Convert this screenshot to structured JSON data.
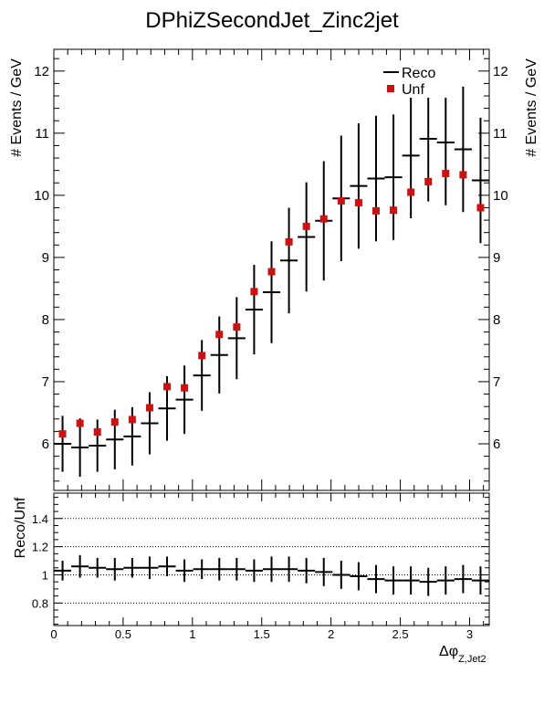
{
  "chart_data": [
    {
      "type": "scatter",
      "title": "DPhiZSecondJet_Zinc2jet",
      "ylabel": "# Events / GeV",
      "xlim": [
        0,
        3.14159
      ],
      "ylim": [
        5.25,
        12.35
      ],
      "y_ticks": [
        "6",
        "7",
        "8",
        "9",
        "10",
        "11",
        "12"
      ],
      "legend": {
        "placement": "top-right",
        "entries": [
          "Reco",
          "Unf"
        ]
      },
      "series": [
        {
          "name": "Reco",
          "style": "crosses with error bars",
          "color": "#000000",
          "bin_edges": [
            0,
            0.1257,
            0.2513,
            0.377,
            0.5027,
            0.6283,
            0.754,
            0.8796,
            1.0053,
            1.131,
            1.2566,
            1.3823,
            1.508,
            1.6336,
            1.7593,
            1.885,
            2.0106,
            2.1363,
            2.2619,
            2.3876,
            2.5133,
            2.6389,
            2.7646,
            2.8903,
            3.0159,
            3.1416
          ],
          "values": [
            6.0,
            5.94,
            5.97,
            6.07,
            6.12,
            6.33,
            6.57,
            6.71,
            7.1,
            7.43,
            7.7,
            8.16,
            8.44,
            8.95,
            9.33,
            9.59,
            9.95,
            10.15,
            10.27,
            10.29,
            10.64,
            10.91,
            10.85,
            10.74,
            10.24
          ],
          "errors": [
            0.45,
            0.47,
            0.42,
            0.48,
            0.47,
            0.5,
            0.52,
            0.55,
            0.57,
            0.62,
            0.66,
            0.72,
            0.82,
            0.85,
            0.88,
            0.96,
            1.01,
            1.01,
            1.01,
            1.01,
            1.01,
            1.01,
            1.01,
            1.01,
            1.01
          ]
        },
        {
          "name": "Unf",
          "style": "filled squares",
          "color": "#cc1111",
          "x": [
            0.0628,
            0.1885,
            0.3142,
            0.4398,
            0.5655,
            0.6912,
            0.8168,
            0.9425,
            1.0681,
            1.1938,
            1.3195,
            1.4451,
            1.5708,
            1.6965,
            1.8221,
            1.9478,
            2.0735,
            2.1991,
            2.3248,
            2.4504,
            2.5761,
            2.7018,
            2.8274,
            2.9531,
            3.0788
          ],
          "values": [
            6.16,
            6.33,
            6.19,
            6.35,
            6.39,
            6.58,
            6.92,
            6.9,
            7.42,
            7.76,
            7.88,
            8.45,
            8.77,
            9.25,
            9.5,
            9.62,
            9.91,
            9.88,
            9.75,
            9.76,
            10.05,
            10.22,
            10.35,
            10.33,
            9.8
          ]
        }
      ]
    },
    {
      "type": "scatter",
      "ylabel": "Reco/Unf",
      "xlabel": "Δφ",
      "xlabel_sub": "Z,Jet2",
      "xlim": [
        0,
        3.14159
      ],
      "ylim": [
        0.64,
        1.58
      ],
      "x_ticks": [
        "0",
        "0.5",
        "1",
        "1.5",
        "2",
        "2.5",
        "3"
      ],
      "y_ticks": [
        "0.8",
        "1",
        "1.2",
        "1.4"
      ],
      "gridlines_y": [
        0.8,
        1.0,
        1.2,
        1.4
      ],
      "series": [
        {
          "style": "crosses with error bars",
          "color": "#000000",
          "values": [
            1.03,
            1.06,
            1.05,
            1.04,
            1.05,
            1.05,
            1.06,
            1.03,
            1.04,
            1.04,
            1.04,
            1.03,
            1.04,
            1.04,
            1.03,
            1.02,
            1.0,
            0.99,
            0.97,
            0.96,
            0.96,
            0.95,
            0.96,
            0.97,
            0.96
          ],
          "errors": [
            0.07,
            0.08,
            0.07,
            0.08,
            0.07,
            0.08,
            0.07,
            0.08,
            0.07,
            0.08,
            0.08,
            0.08,
            0.09,
            0.09,
            0.09,
            0.1,
            0.1,
            0.1,
            0.1,
            0.1,
            0.1,
            0.1,
            0.1,
            0.1,
            0.1
          ]
        }
      ]
    }
  ]
}
